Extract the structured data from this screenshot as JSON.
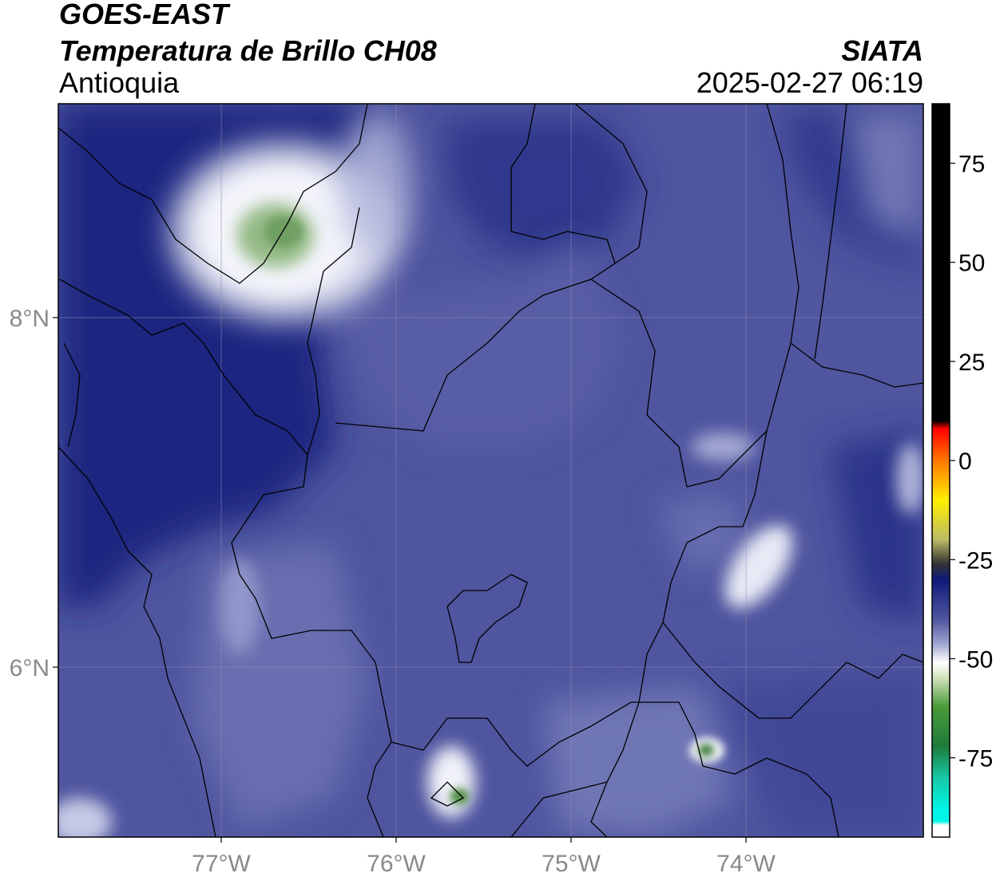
{
  "header": {
    "satellite": "GOES-EAST",
    "product": "Temperatura de Brillo CH08",
    "organization": "SIATA",
    "region": "Antioquia",
    "timestamp": "2025-02-27 06:19"
  },
  "map": {
    "longitude_labels": [
      "77°W",
      "76°W",
      "75°W",
      "74°W"
    ],
    "latitude_labels": [
      "8°N",
      "6°N"
    ],
    "gridlines": true,
    "colors": {
      "background": "#4f559f",
      "dark_band": "#1f2680",
      "light_band": "#6d74b4",
      "cold_cloud": "#e4e6f2",
      "very_cold": "#93b984",
      "boundary": "#000000"
    }
  },
  "colorbar": {
    "tick_labels": [
      "75",
      "50",
      "25",
      "0",
      "-25",
      "-50",
      "-75"
    ],
    "range": [
      -95,
      90
    ],
    "stops": [
      {
        "value": 90,
        "color": "#000000"
      },
      {
        "value": 10,
        "color": "#000000"
      },
      {
        "value": 8,
        "color": "#ff0000"
      },
      {
        "value": 0,
        "color": "#ff7700"
      },
      {
        "value": -10,
        "color": "#ffee00"
      },
      {
        "value": -20,
        "color": "#bbbb66"
      },
      {
        "value": -26,
        "color": "#333333"
      },
      {
        "value": -30,
        "color": "#101a78"
      },
      {
        "value": -40,
        "color": "#4f559f"
      },
      {
        "value": -46,
        "color": "#9ba1cf"
      },
      {
        "value": -51,
        "color": "#ffffff"
      },
      {
        "value": -55,
        "color": "#cfe0b8"
      },
      {
        "value": -62,
        "color": "#4a9c3a"
      },
      {
        "value": -72,
        "color": "#1e7a3a"
      },
      {
        "value": -80,
        "color": "#18c8a8"
      },
      {
        "value": -88,
        "color": "#00f5e6"
      },
      {
        "value": -91,
        "color": "#00f5e6"
      },
      {
        "value": -92,
        "color": "#ffffff"
      },
      {
        "value": -95,
        "color": "#ffffff"
      }
    ]
  }
}
